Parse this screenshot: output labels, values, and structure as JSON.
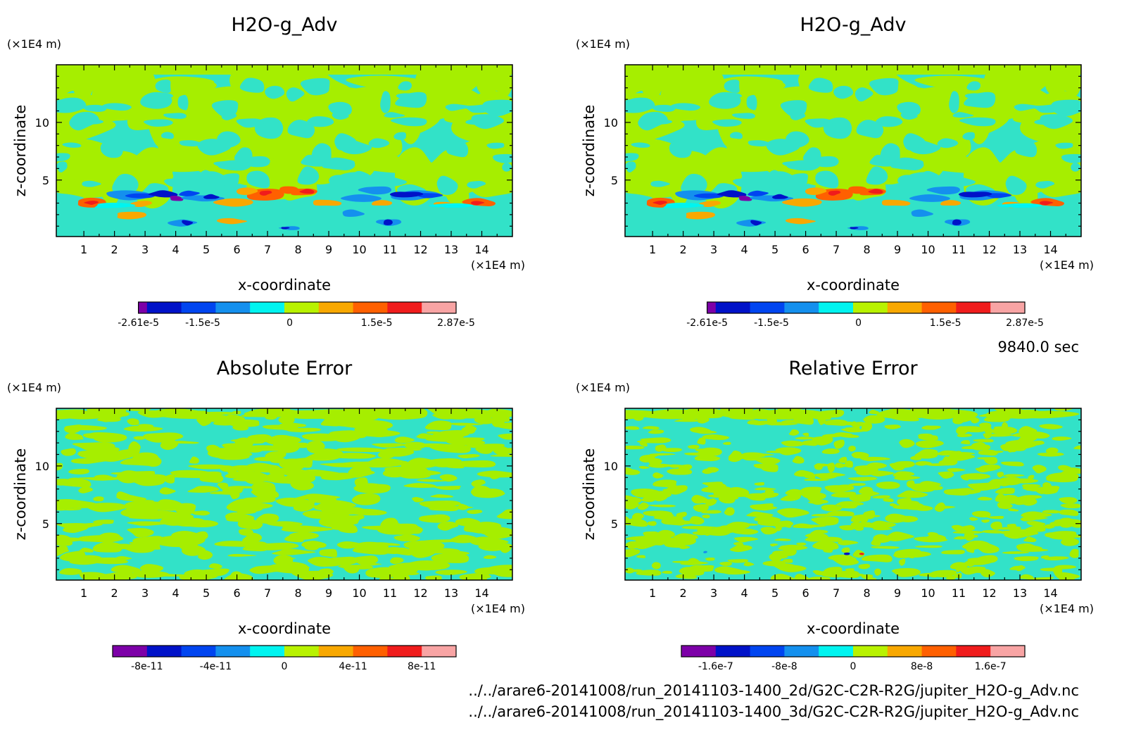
{
  "figure": {
    "time_label": "9840.0 sec",
    "files": [
      "../../arare6-20141008/run_20141103-1400_2d/G2C-C2R-R2G/jupiter_H2O-g_Adv.nc",
      "../../arare6-20141008/run_20141103-1400_3d/G2C-C2R-R2G/jupiter_H2O-g_Adv.nc"
    ],
    "colors": {
      "palette": [
        "#7d00a8",
        "#0012c8",
        "#0045f0",
        "#1490ee",
        "#00f4f0",
        "#b8f200",
        "#f8a800",
        "#ff6000",
        "#f01c1c",
        "#f8a4a4"
      ],
      "bg_field": "#32e2c8",
      "fg_field": "#a6ee00"
    }
  },
  "chart_data": [
    {
      "type": "heatmap",
      "title": "H2O-g_Adv",
      "xlabel": "x-coordinate",
      "ylabel": "z-coordinate",
      "x_unit": "(×1E4 m)",
      "y_unit": "(×1E4 m)",
      "xlim": [
        0.1,
        15
      ],
      "ylim": [
        0.1,
        15
      ],
      "xticks": [
        "1",
        "2",
        "3",
        "4",
        "5",
        "6",
        "7",
        "8",
        "9",
        "10",
        "11",
        "12",
        "13",
        "14"
      ],
      "yticks": [
        "5",
        "10"
      ],
      "colorbar": {
        "min": -2.61e-05,
        "max": 2.87e-05,
        "labels": [
          "-2.61e-5",
          "-1.5e-5",
          "0",
          "1.5e-5",
          "2.87e-5"
        ]
      }
    },
    {
      "type": "heatmap",
      "title": "H2O-g_Adv",
      "xlabel": "x-coordinate",
      "ylabel": "z-coordinate",
      "x_unit": "(×1E4 m)",
      "y_unit": "(×1E4 m)",
      "xlim": [
        0.1,
        15
      ],
      "ylim": [
        0.1,
        15
      ],
      "xticks": [
        "1",
        "2",
        "3",
        "4",
        "5",
        "6",
        "7",
        "8",
        "9",
        "10",
        "11",
        "12",
        "13",
        "14"
      ],
      "yticks": [
        "5",
        "10"
      ],
      "colorbar": {
        "min": -2.61e-05,
        "max": 2.87e-05,
        "labels": [
          "-2.61e-5",
          "-1.5e-5",
          "0",
          "1.5e-5",
          "2.87e-5"
        ]
      }
    },
    {
      "type": "heatmap",
      "title": "Absolute Error",
      "xlabel": "x-coordinate",
      "ylabel": "z-coordinate",
      "x_unit": "(×1E4 m)",
      "y_unit": "(×1E4 m)",
      "xlim": [
        0.1,
        15
      ],
      "ylim": [
        0.1,
        15
      ],
      "xticks": [
        "1",
        "2",
        "3",
        "4",
        "5",
        "6",
        "7",
        "8",
        "9",
        "10",
        "11",
        "12",
        "13",
        "14"
      ],
      "yticks": [
        "5",
        "10"
      ],
      "colorbar": {
        "min": -1e-10,
        "max": 1e-10,
        "labels": [
          "-8e-11",
          "-4e-11",
          "0",
          "4e-11",
          "8e-11"
        ]
      }
    },
    {
      "type": "heatmap",
      "title": "Relative Error",
      "xlabel": "x-coordinate",
      "ylabel": "z-coordinate",
      "x_unit": "(×1E4 m)",
      "y_unit": "(×1E4 m)",
      "xlim": [
        0.1,
        15
      ],
      "ylim": [
        0.1,
        15
      ],
      "xticks": [
        "1",
        "2",
        "3",
        "4",
        "5",
        "6",
        "7",
        "8",
        "9",
        "10",
        "11",
        "12",
        "13",
        "14"
      ],
      "yticks": [
        "5",
        "10"
      ],
      "colorbar": {
        "min": -2e-07,
        "max": 2e-07,
        "labels": [
          "-1.6e-7",
          "-8e-8",
          "0",
          "8e-8",
          "1.6e-7"
        ]
      }
    }
  ]
}
